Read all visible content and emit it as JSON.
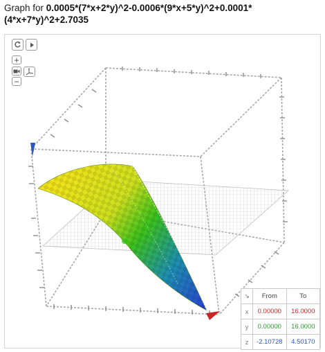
{
  "title": {
    "prefix": "Graph for ",
    "expression": "0.0005*(7*x+2*y)^2-0.0006*(9*x+5*y)^2+0.0001*(4*x+7*y)^2+2.7035"
  },
  "controls": {
    "reset_icon": "reset-view-icon",
    "play_icon": "play-icon",
    "zoom_in_label": "+",
    "zoom_out_label": "−",
    "camera_icon": "camera-icon",
    "axes_icon": "axes-icon"
  },
  "range_table": {
    "corner_symbol": "↘",
    "header_from": "From",
    "header_to": "To",
    "rows": [
      {
        "axis": "x",
        "from": "0.00000",
        "to": "16.0000"
      },
      {
        "axis": "y",
        "from": "0.00000",
        "to": "16.0000"
      },
      {
        "axis": "z",
        "from": "-2.10728",
        "to": "4.50170"
      }
    ]
  },
  "colors": {
    "x_axis": "#c62828",
    "y_axis": "#2e9a2e",
    "z_axis": "#2b56c5",
    "surface_high": "#f2e21a",
    "surface_mid": "#3cc21c",
    "surface_low": "#2a36d8",
    "box_edges": "#9a9a9a"
  }
}
